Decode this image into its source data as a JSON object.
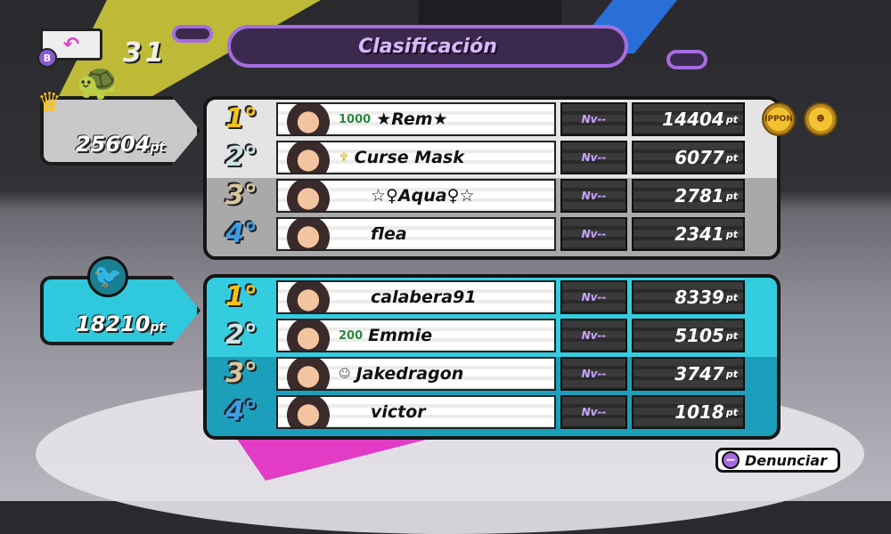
{
  "header": {
    "title": "Clasificación",
    "back_button_key": "B",
    "back_icon": "undo-arrow-icon",
    "count": "31"
  },
  "teams": [
    {
      "emblem": "turtle-emblem-icon",
      "crown": "crown-icon",
      "score": "25604",
      "unit": "pt",
      "color": "#c9c9c9",
      "players": [
        {
          "rank": "1°",
          "badge": "1000",
          "name": "★Rem★",
          "level": "Nv--",
          "points": "14404",
          "unit": "pt"
        },
        {
          "rank": "2°",
          "badge": "trophy-icon",
          "name": "Curse Mask",
          "level": "Nv--",
          "points": "6077",
          "unit": "pt"
        },
        {
          "rank": "3°",
          "badge": "",
          "name": "☆♀Aqua♀☆",
          "level": "Nv--",
          "points": "2781",
          "unit": "pt"
        },
        {
          "rank": "4°",
          "badge": "",
          "name": "flea",
          "level": "Nv--",
          "points": "2341",
          "unit": "pt"
        }
      ]
    },
    {
      "emblem": "phoenix-emblem-icon",
      "score": "18210",
      "unit": "pt",
      "color": "#2fc8dc",
      "players": [
        {
          "rank": "1°",
          "badge": "",
          "name": "calabera91",
          "level": "Nv--",
          "points": "8339",
          "unit": "pt"
        },
        {
          "rank": "2°",
          "badge": "200",
          "name": "Emmie",
          "level": "Nv--",
          "points": "5105",
          "unit": "pt"
        },
        {
          "rank": "3°",
          "badge": "face-icon",
          "name": "Jakedragon",
          "level": "Nv--",
          "points": "3747",
          "unit": "pt"
        },
        {
          "rank": "4°",
          "badge": "",
          "name": "victor",
          "level": "Nv--",
          "points": "1018",
          "unit": "pt"
        }
      ]
    }
  ],
  "medals": [
    {
      "label": "IPPON"
    },
    {
      "label": "ninja-face-icon"
    }
  ],
  "report": {
    "key": "−",
    "label": "Denunciar"
  }
}
